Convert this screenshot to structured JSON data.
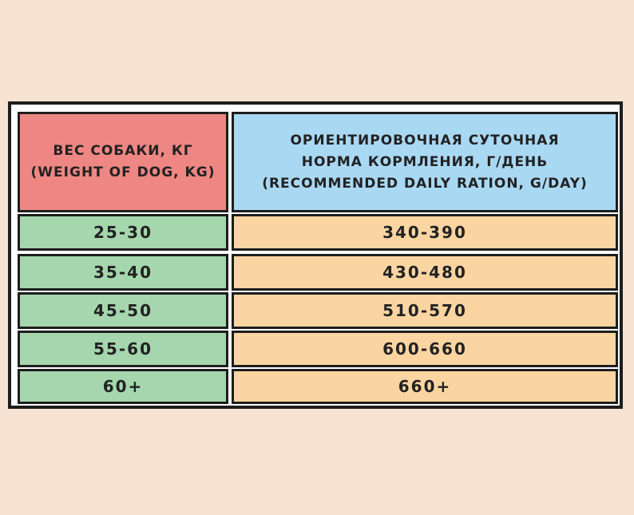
{
  "table": {
    "headers": [
      {
        "lines": [
          "ВЕС СОБАКИ, КГ",
          "(WEIGHT OF DOG, KG)"
        ]
      },
      {
        "lines": [
          "ОРИЕНТИРОВОЧНАЯ СУТОЧНАЯ",
          "НОРМА КОРМЛЕНИЯ, Г/ДЕНЬ",
          "(RECOMMENDED DAILY RATION, G/DAY)"
        ]
      }
    ],
    "rows": [
      [
        "25-30",
        "340-390"
      ],
      [
        "35-40",
        "430-480"
      ],
      [
        "45-50",
        "510-570"
      ],
      [
        "55-60",
        "600-660"
      ],
      [
        "60+",
        "660+"
      ]
    ]
  },
  "colors": {
    "header_left": "#ee8783",
    "header_right": "#a9d8f3",
    "weight_cells": "#a5d6ad",
    "ration_cells": "#fbd5a1",
    "background": "#f8e3d3"
  }
}
